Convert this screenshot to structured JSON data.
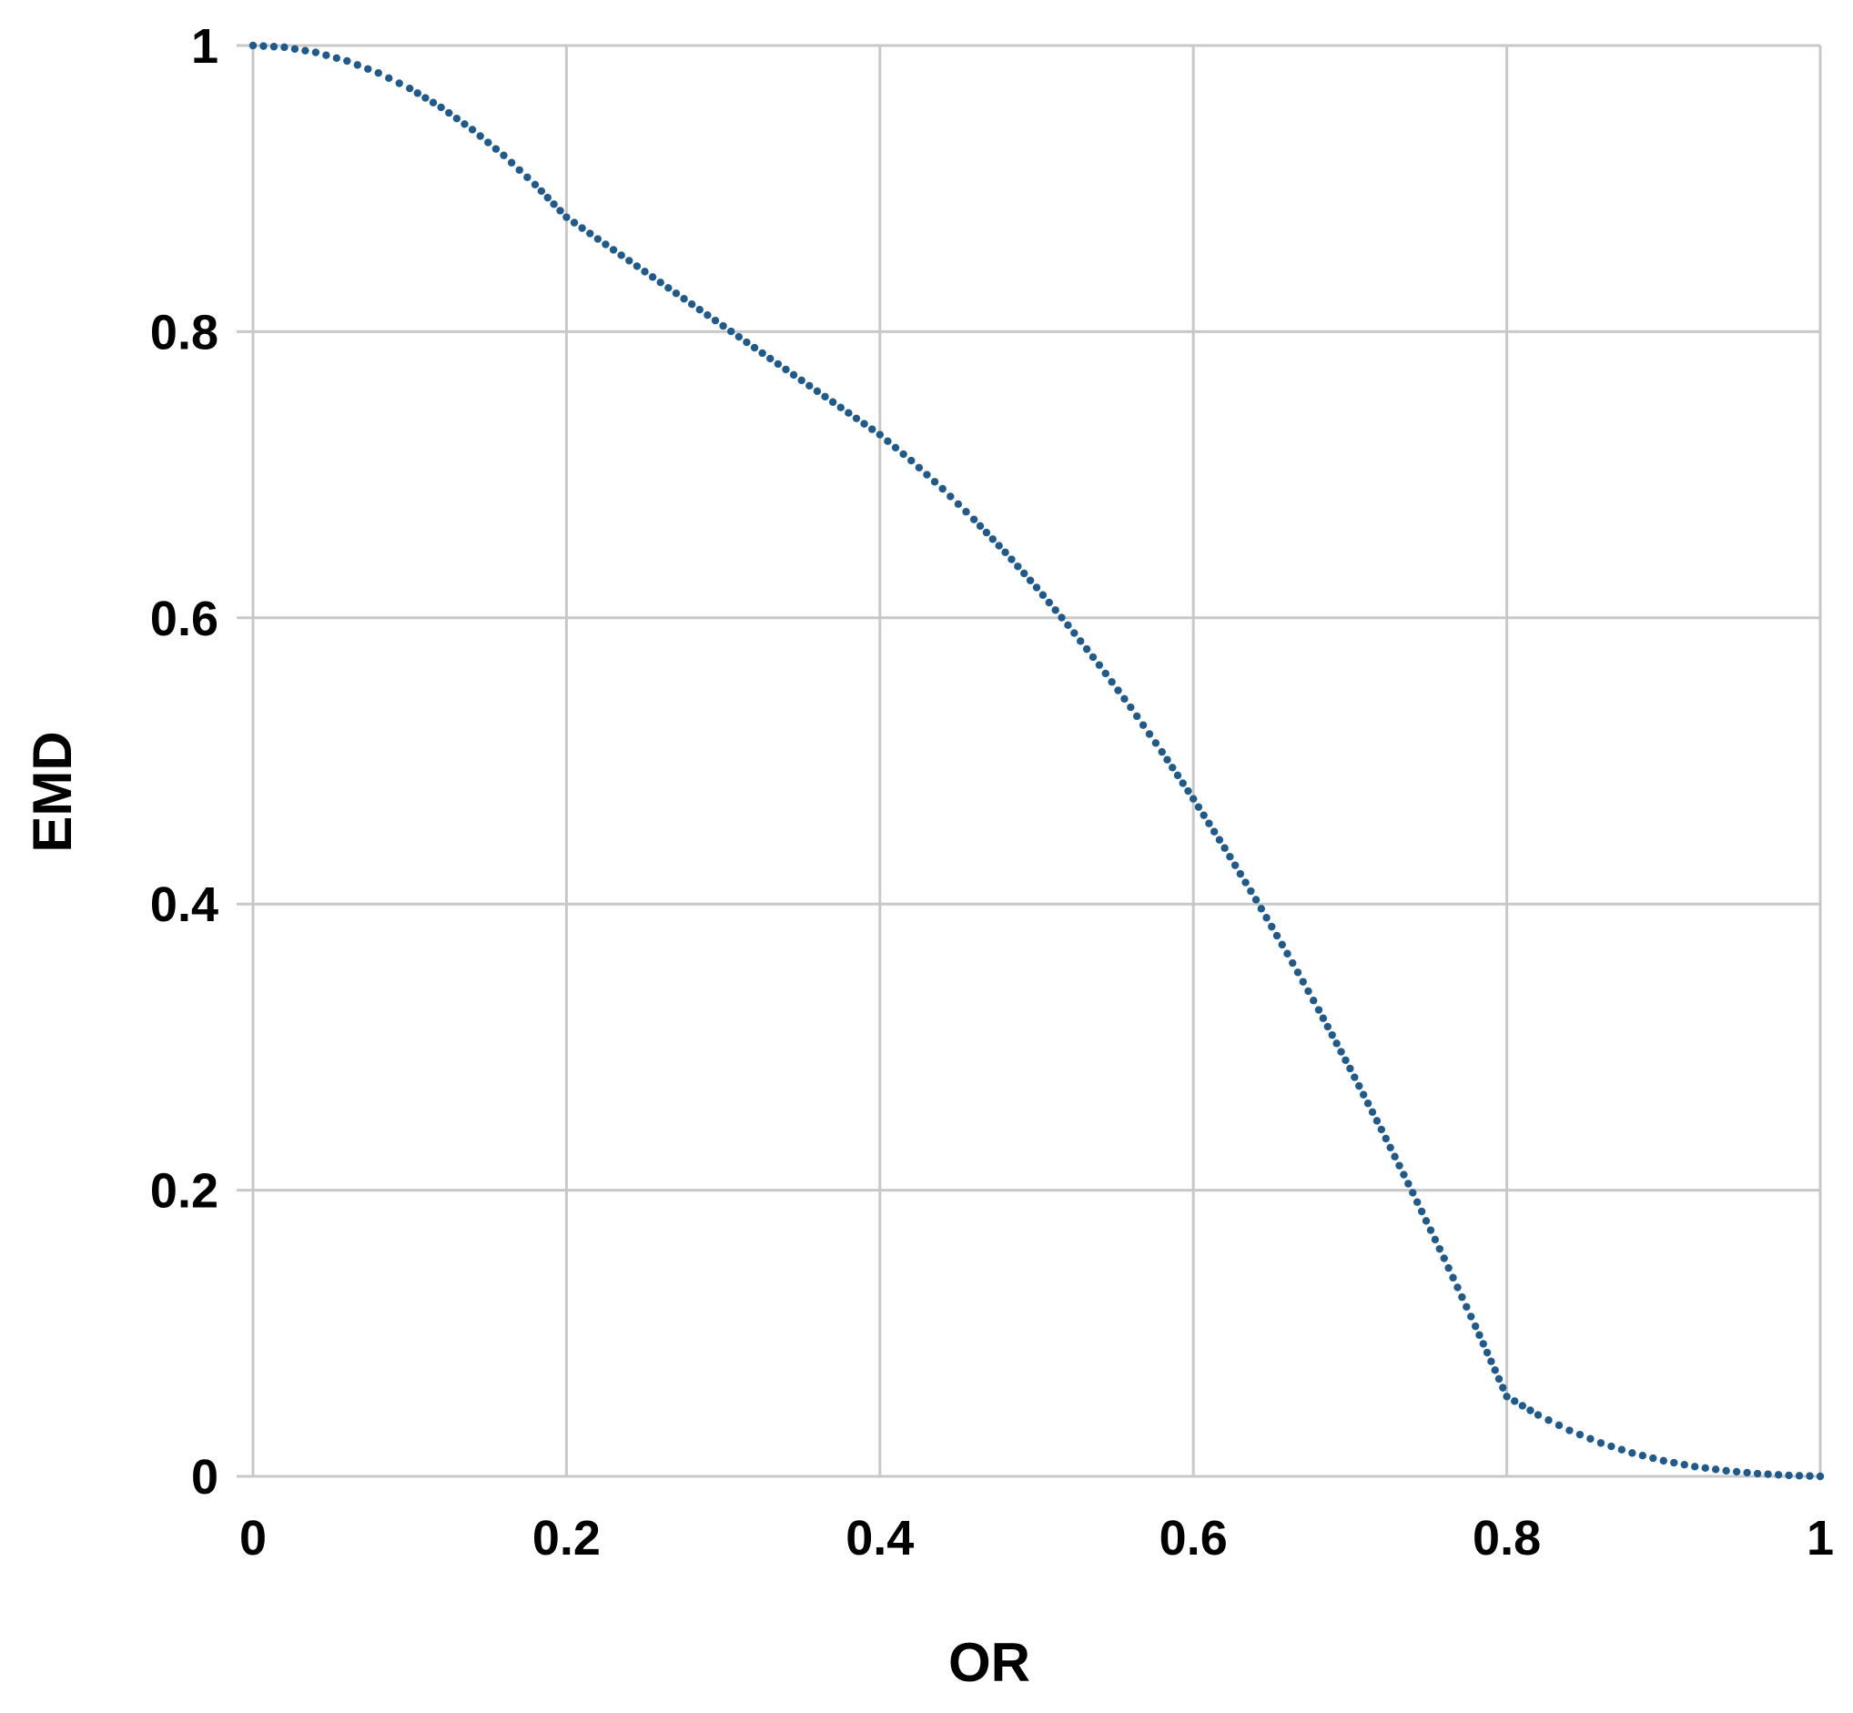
{
  "chart_data": {
    "type": "scatter",
    "title": "",
    "xlabel": "OR",
    "ylabel": "EMD",
    "xlim": [
      0,
      1
    ],
    "ylim": [
      0,
      1
    ],
    "x_ticks": [
      "0",
      "0.2",
      "0.4",
      "0.6",
      "0.8",
      "1"
    ],
    "y_ticks": [
      "0",
      "0.2",
      "0.4",
      "0.6",
      "0.8",
      "1"
    ],
    "grid": true,
    "legend": "none",
    "marker": "small round dots forming a dotted curve",
    "series": [
      {
        "color": "#1f5a8c",
        "x": [
          0,
          0.02,
          0.04,
          0.06,
          0.08,
          0.1,
          0.12,
          0.14,
          0.16,
          0.18,
          0.2,
          0.22,
          0.24,
          0.26,
          0.28,
          0.3,
          0.32,
          0.34,
          0.36,
          0.38,
          0.4,
          0.42,
          0.44,
          0.46,
          0.48,
          0.5,
          0.52,
          0.54,
          0.56,
          0.58,
          0.6,
          0.62,
          0.64,
          0.66,
          0.68,
          0.7,
          0.72,
          0.74,
          0.76,
          0.78,
          0.8,
          0.82,
          0.84,
          0.86,
          0.88,
          0.9,
          0.92,
          0.94,
          0.96,
          0.98,
          1
        ],
        "y": [
          1,
          0.9988,
          0.9952,
          0.9892,
          0.9808,
          0.97,
          0.9568,
          0.9412,
          0.9232,
          0.9028,
          0.88,
          0.8648,
          0.8496,
          0.8344,
          0.8192,
          0.804,
          0.7888,
          0.7736,
          0.7584,
          0.7432,
          0.728,
          0.7099,
          0.6902,
          0.6688,
          0.6458,
          0.6212,
          0.5949,
          0.567,
          0.5375,
          0.5063,
          0.4735,
          0.4391,
          0.403,
          0.3653,
          0.326,
          0.285,
          0.2424,
          0.1982,
          0.1524,
          0.1049,
          0.0558,
          0.0429,
          0.0321,
          0.0233,
          0.0163,
          0.0109,
          0.0068,
          0.0039,
          0.0019,
          0.0007,
          0
        ]
      }
    ]
  }
}
